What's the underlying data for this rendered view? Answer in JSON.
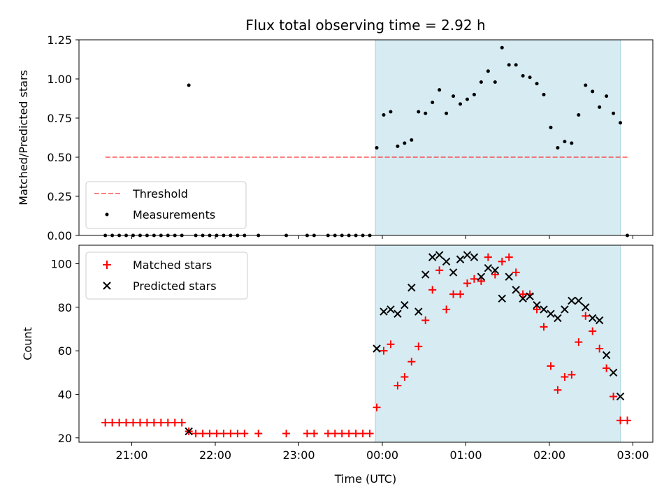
{
  "title": "Flux total observing time = 2.92 h",
  "colors": {
    "shade": "#add8e6",
    "threshold": "#ff0000",
    "measurements": "#000000",
    "matched": "#ff0000",
    "predicted": "#000000"
  },
  "chart_data": [
    {
      "type": "scatter",
      "ylabel": "Matched/Predicted stars",
      "ylim": [
        0,
        1.25
      ],
      "yticks": [
        "0.00",
        "0.25",
        "0.50",
        "0.75",
        "1.00",
        "1.25"
      ],
      "xlim": [
        "20:27",
        "03:15"
      ],
      "shaded_span": [
        "23:55",
        "02:51"
      ],
      "legend": {
        "placement": "lower-left",
        "entries": [
          {
            "label": "Threshold",
            "style": "dashed-line"
          },
          {
            "label": "Measurements",
            "style": "dot"
          }
        ]
      },
      "threshold": {
        "name": "Threshold",
        "value": 0.5,
        "x_range": [
          "20:41",
          "02:56"
        ]
      },
      "series": [
        {
          "name": "Measurements",
          "points": [
            [
              "20:41",
              0
            ],
            [
              "20:46",
              0
            ],
            [
              "20:51",
              0
            ],
            [
              "20:56",
              0
            ],
            [
              "21:01",
              0
            ],
            [
              "21:06",
              0
            ],
            [
              "21:11",
              0
            ],
            [
              "21:16",
              0
            ],
            [
              "21:21",
              0
            ],
            [
              "21:26",
              0
            ],
            [
              "21:31",
              0
            ],
            [
              "21:36",
              0
            ],
            [
              "21:41",
              0.96
            ],
            [
              "21:46",
              0
            ],
            [
              "21:51",
              0
            ],
            [
              "21:56",
              0
            ],
            [
              "22:01",
              0
            ],
            [
              "22:06",
              0
            ],
            [
              "22:11",
              0
            ],
            [
              "22:16",
              0
            ],
            [
              "22:21",
              0
            ],
            [
              "22:31",
              0
            ],
            [
              "22:51",
              0
            ],
            [
              "23:06",
              0
            ],
            [
              "23:11",
              0
            ],
            [
              "23:21",
              0
            ],
            [
              "23:26",
              0
            ],
            [
              "23:31",
              0
            ],
            [
              "23:36",
              0
            ],
            [
              "23:41",
              0
            ],
            [
              "23:46",
              0
            ],
            [
              "23:51",
              0
            ],
            [
              "23:56",
              0.56
            ],
            [
              "00:01",
              0.77
            ],
            [
              "00:06",
              0.79
            ],
            [
              "00:11",
              0.57
            ],
            [
              "00:16",
              0.59
            ],
            [
              "00:21",
              0.61
            ],
            [
              "00:26",
              0.79
            ],
            [
              "00:31",
              0.78
            ],
            [
              "00:36",
              0.85
            ],
            [
              "00:41",
              0.93
            ],
            [
              "00:46",
              0.78
            ],
            [
              "00:51",
              0.89
            ],
            [
              "00:56",
              0.84
            ],
            [
              "01:01",
              0.87
            ],
            [
              "01:06",
              0.9
            ],
            [
              "01:11",
              0.98
            ],
            [
              "01:16",
              1.05
            ],
            [
              "01:21",
              0.98
            ],
            [
              "01:26",
              1.2
            ],
            [
              "01:31",
              1.09
            ],
            [
              "01:36",
              1.09
            ],
            [
              "01:41",
              1.02
            ],
            [
              "01:46",
              1.01
            ],
            [
              "01:51",
              0.97
            ],
            [
              "01:56",
              0.9
            ],
            [
              "02:01",
              0.69
            ],
            [
              "02:06",
              0.56
            ],
            [
              "02:11",
              0.6
            ],
            [
              "02:16",
              0.59
            ],
            [
              "02:21",
              0.77
            ],
            [
              "02:26",
              0.96
            ],
            [
              "02:31",
              0.92
            ],
            [
              "02:36",
              0.82
            ],
            [
              "02:41",
              0.89
            ],
            [
              "02:46",
              0.78
            ],
            [
              "02:51",
              0.72
            ],
            [
              "02:56",
              0
            ]
          ]
        }
      ]
    },
    {
      "type": "scatter",
      "xlabel": "Time (UTC)",
      "ylabel": "Count",
      "ylim": [
        18,
        108.5
      ],
      "yticks": [
        "20",
        "40",
        "60",
        "80",
        "100"
      ],
      "xticks": [
        "21:00",
        "22:00",
        "23:00",
        "00:00",
        "01:00",
        "02:00",
        "03:00"
      ],
      "xlim": [
        "20:27",
        "03:15"
      ],
      "shaded_span": [
        "23:55",
        "02:51"
      ],
      "legend": {
        "placement": "top-left",
        "entries": [
          {
            "label": "Matched stars",
            "style": "plus"
          },
          {
            "label": "Predicted stars",
            "style": "cross"
          }
        ]
      },
      "series": [
        {
          "name": "Matched stars",
          "marker": "plus",
          "points": [
            [
              "20:41",
              27
            ],
            [
              "20:46",
              27
            ],
            [
              "20:51",
              27
            ],
            [
              "20:56",
              27
            ],
            [
              "21:01",
              27
            ],
            [
              "21:06",
              27
            ],
            [
              "21:11",
              27
            ],
            [
              "21:16",
              27
            ],
            [
              "21:21",
              27
            ],
            [
              "21:26",
              27
            ],
            [
              "21:31",
              27
            ],
            [
              "21:36",
              27
            ],
            [
              "21:41",
              23
            ],
            [
              "21:46",
              22
            ],
            [
              "21:51",
              22
            ],
            [
              "21:56",
              22
            ],
            [
              "22:01",
              22
            ],
            [
              "22:06",
              22
            ],
            [
              "22:11",
              22
            ],
            [
              "22:16",
              22
            ],
            [
              "22:21",
              22
            ],
            [
              "22:31",
              22
            ],
            [
              "22:51",
              22
            ],
            [
              "23:06",
              22
            ],
            [
              "23:11",
              22
            ],
            [
              "23:21",
              22
            ],
            [
              "23:26",
              22
            ],
            [
              "23:31",
              22
            ],
            [
              "23:36",
              22
            ],
            [
              "23:41",
              22
            ],
            [
              "23:46",
              22
            ],
            [
              "23:51",
              22
            ],
            [
              "23:56",
              34
            ],
            [
              "00:01",
              60
            ],
            [
              "00:06",
              63
            ],
            [
              "00:11",
              44
            ],
            [
              "00:16",
              48
            ],
            [
              "00:21",
              55
            ],
            [
              "00:26",
              62
            ],
            [
              "00:31",
              74
            ],
            [
              "00:36",
              88
            ],
            [
              "00:41",
              97
            ],
            [
              "00:46",
              79
            ],
            [
              "00:51",
              86
            ],
            [
              "00:56",
              86
            ],
            [
              "01:01",
              91
            ],
            [
              "01:06",
              93
            ],
            [
              "01:11",
              92
            ],
            [
              "01:16",
              103
            ],
            [
              "01:21",
              95
            ],
            [
              "01:26",
              101
            ],
            [
              "01:31",
              103
            ],
            [
              "01:36",
              96
            ],
            [
              "01:41",
              86
            ],
            [
              "01:46",
              86
            ],
            [
              "01:51",
              79
            ],
            [
              "01:56",
              71
            ],
            [
              "02:01",
              53
            ],
            [
              "02:06",
              42
            ],
            [
              "02:11",
              48
            ],
            [
              "02:16",
              49
            ],
            [
              "02:21",
              64
            ],
            [
              "02:26",
              76
            ],
            [
              "02:31",
              69
            ],
            [
              "02:36",
              61
            ],
            [
              "02:41",
              52
            ],
            [
              "02:46",
              39
            ],
            [
              "02:51",
              28
            ],
            [
              "02:56",
              28
            ]
          ]
        },
        {
          "name": "Predicted stars",
          "marker": "cross",
          "points": [
            [
              "21:41",
              23
            ],
            [
              "23:56",
              61
            ],
            [
              "00:01",
              78
            ],
            [
              "00:06",
              79
            ],
            [
              "00:11",
              77
            ],
            [
              "00:16",
              81
            ],
            [
              "00:21",
              89
            ],
            [
              "00:26",
              78
            ],
            [
              "00:31",
              95
            ],
            [
              "00:36",
              103
            ],
            [
              "00:41",
              104
            ],
            [
              "00:46",
              101
            ],
            [
              "00:51",
              96
            ],
            [
              "00:56",
              102
            ],
            [
              "01:01",
              104
            ],
            [
              "01:06",
              103
            ],
            [
              "01:11",
              94
            ],
            [
              "01:16",
              98
            ],
            [
              "01:21",
              97
            ],
            [
              "01:26",
              84
            ],
            [
              "01:31",
              94
            ],
            [
              "01:36",
              88
            ],
            [
              "01:41",
              84
            ],
            [
              "01:46",
              85
            ],
            [
              "01:51",
              81
            ],
            [
              "01:56",
              79
            ],
            [
              "02:01",
              77
            ],
            [
              "02:06",
              75
            ],
            [
              "02:11",
              79
            ],
            [
              "02:16",
              83
            ],
            [
              "02:21",
              83
            ],
            [
              "02:26",
              80
            ],
            [
              "02:31",
              75
            ],
            [
              "02:36",
              74
            ],
            [
              "02:41",
              58
            ],
            [
              "02:46",
              50
            ],
            [
              "02:51",
              39
            ]
          ]
        }
      ]
    }
  ]
}
